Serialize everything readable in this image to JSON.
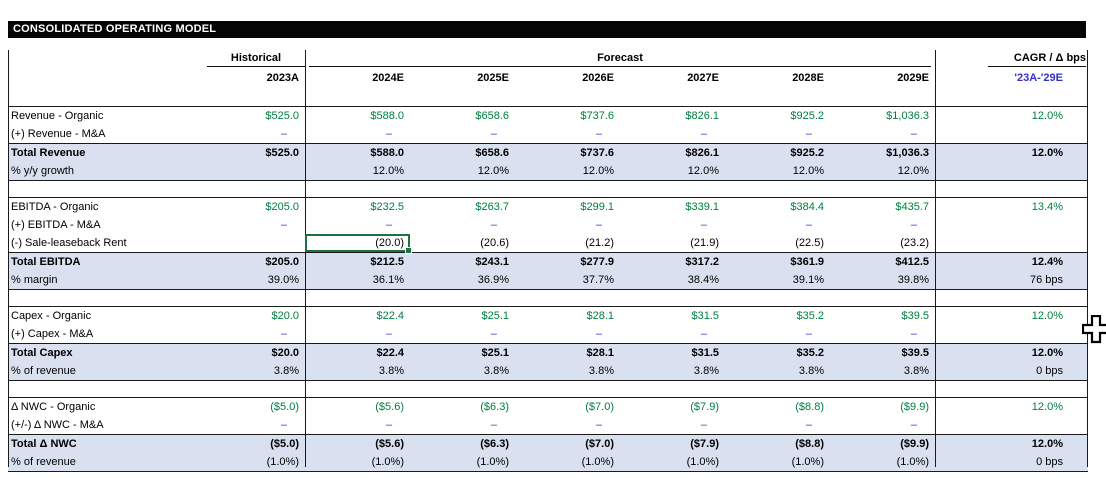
{
  "title": "CONSOLIDATED OPERATING MODEL",
  "header": {
    "historical_label": "Historical",
    "forecast_label": "Forecast",
    "cagr_label": "CAGR / Δ bps",
    "hist_year": "2023A",
    "forecast_years": [
      "2024E",
      "2025E",
      "2026E",
      "2027E",
      "2028E",
      "2029E"
    ],
    "cagr_period": "'23A-'29E"
  },
  "colors": {
    "title_bar_bg": "#050505",
    "band_fill": "#D9E0F0",
    "link_green": "#008040",
    "input_blue": "#3333CC",
    "selection_green": "#1E7145"
  },
  "sections": [
    {
      "name": "revenue",
      "rows": [
        {
          "label": "Revenue - Organic",
          "type": "organic",
          "values": [
            "$525.0",
            "$588.0",
            "$658.6",
            "$737.6",
            "$826.1",
            "$925.2",
            "$1,036.3"
          ],
          "cagr": "12.0%"
        },
        {
          "label": "(+) Revenue - M&A",
          "type": "input",
          "values": [
            "–",
            "–",
            "–",
            "–",
            "–",
            "–",
            "–"
          ],
          "cagr": ""
        },
        {
          "label": "Total Revenue",
          "type": "total",
          "values": [
            "$525.0",
            "$588.0",
            "$658.6",
            "$737.6",
            "$826.1",
            "$925.2",
            "$1,036.3"
          ],
          "cagr": "12.0%"
        },
        {
          "label": "% y/y growth",
          "type": "pct",
          "values": [
            "",
            "12.0%",
            "12.0%",
            "12.0%",
            "12.0%",
            "12.0%",
            "12.0%"
          ],
          "cagr": ""
        }
      ]
    },
    {
      "name": "ebitda",
      "rows": [
        {
          "label": "EBITDA - Organic",
          "type": "organic",
          "values": [
            "$205.0",
            "$232.5",
            "$263.7",
            "$299.1",
            "$339.1",
            "$384.4",
            "$435.7"
          ],
          "cagr": "13.4%"
        },
        {
          "label": "(+) EBITDA - M&A",
          "type": "input",
          "values": [
            "–",
            "–",
            "–",
            "–",
            "–",
            "–",
            "–"
          ],
          "cagr": ""
        },
        {
          "label": "(-) Sale-leaseback Rent",
          "type": "plain",
          "values": [
            "",
            "(20.0)",
            "(20.6)",
            "(21.2)",
            "(21.9)",
            "(22.5)",
            "(23.2)"
          ],
          "cagr": ""
        },
        {
          "label": "Total EBITDA",
          "type": "total",
          "values": [
            "$205.0",
            "$212.5",
            "$243.1",
            "$277.9",
            "$317.2",
            "$361.9",
            "$412.5"
          ],
          "cagr": "12.4%"
        },
        {
          "label": "% margin",
          "type": "pct",
          "values": [
            "39.0%",
            "36.1%",
            "36.9%",
            "37.7%",
            "38.4%",
            "39.1%",
            "39.8%"
          ],
          "cagr": "76 bps"
        }
      ]
    },
    {
      "name": "capex",
      "rows": [
        {
          "label": "Capex - Organic",
          "type": "organic",
          "values": [
            "$20.0",
            "$22.4",
            "$25.1",
            "$28.1",
            "$31.5",
            "$35.2",
            "$39.5"
          ],
          "cagr": "12.0%"
        },
        {
          "label": "(+) Capex - M&A",
          "type": "input",
          "values": [
            "–",
            "–",
            "–",
            "–",
            "–",
            "–",
            "–"
          ],
          "cagr": ""
        },
        {
          "label": "Total Capex",
          "type": "total",
          "values": [
            "$20.0",
            "$22.4",
            "$25.1",
            "$28.1",
            "$31.5",
            "$35.2",
            "$39.5"
          ],
          "cagr": "12.0%"
        },
        {
          "label": "% of revenue",
          "type": "pct",
          "values": [
            "3.8%",
            "3.8%",
            "3.8%",
            "3.8%",
            "3.8%",
            "3.8%",
            "3.8%"
          ],
          "cagr": "0 bps"
        }
      ]
    },
    {
      "name": "nwc",
      "rows": [
        {
          "label": "Δ NWC - Organic",
          "type": "organic",
          "values": [
            "($5.0)",
            "($5.6)",
            "($6.3)",
            "($7.0)",
            "($7.9)",
            "($8.8)",
            "($9.9)"
          ],
          "cagr": "12.0%"
        },
        {
          "label": "(+/-) Δ NWC - M&A",
          "type": "input",
          "values": [
            "–",
            "–",
            "–",
            "–",
            "–",
            "–",
            "–"
          ],
          "cagr": ""
        },
        {
          "label": "Total Δ NWC",
          "type": "total",
          "values": [
            "($5.0)",
            "($5.6)",
            "($6.3)",
            "($7.0)",
            "($7.9)",
            "($8.8)",
            "($9.9)"
          ],
          "cagr": "12.0%"
        },
        {
          "label": "% of revenue",
          "type": "pct",
          "values": [
            "(1.0%)",
            "(1.0%)",
            "(1.0%)",
            "(1.0%)",
            "(1.0%)",
            "(1.0%)",
            "(1.0%)"
          ],
          "cagr": "0 bps"
        }
      ]
    }
  ],
  "selection": {
    "section": 1,
    "row": 2,
    "value_index": 1
  }
}
